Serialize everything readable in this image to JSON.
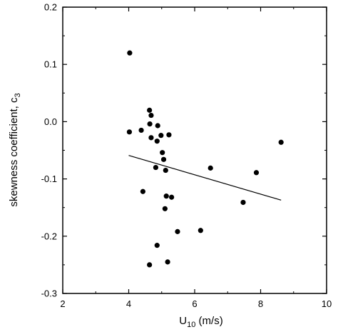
{
  "chart_data": {
    "type": "scatter",
    "title": "",
    "xlabel": "U",
    "xlabel_sub": "10",
    "xlabel_unit": " (m/s)",
    "ylabel": "skewness coefficient, c",
    "ylabel_sub": "3",
    "xlim": [
      2,
      10
    ],
    "ylim": [
      -0.3,
      0.2
    ],
    "x_ticks": [
      2,
      4,
      6,
      8,
      10
    ],
    "x_tick_labels": [
      "2",
      "4",
      "6",
      "8",
      "10"
    ],
    "y_ticks": [
      -0.3,
      -0.2,
      -0.1,
      0.0,
      0.1,
      0.2
    ],
    "y_tick_labels": [
      "-0.3",
      "-0.2",
      "-0.1",
      "0.0",
      "0.1",
      "0.2"
    ],
    "grid": false,
    "series": [
      {
        "marker": "filled-circle",
        "color": "#000000",
        "points": [
          [
            4.03,
            0.12
          ],
          [
            4.02,
            -0.018
          ],
          [
            4.38,
            -0.015
          ],
          [
            4.63,
            0.02
          ],
          [
            4.68,
            0.011
          ],
          [
            4.64,
            -0.004
          ],
          [
            4.88,
            -0.007
          ],
          [
            4.98,
            -0.024
          ],
          [
            4.68,
            -0.028
          ],
          [
            4.86,
            -0.034
          ],
          [
            5.22,
            -0.023
          ],
          [
            5.02,
            -0.054
          ],
          [
            5.06,
            -0.066
          ],
          [
            4.82,
            -0.08
          ],
          [
            5.12,
            -0.085
          ],
          [
            4.43,
            -0.122
          ],
          [
            5.14,
            -0.13
          ],
          [
            5.3,
            -0.132
          ],
          [
            5.1,
            -0.152
          ],
          [
            5.48,
            -0.192
          ],
          [
            4.86,
            -0.216
          ],
          [
            4.63,
            -0.25
          ],
          [
            5.18,
            -0.245
          ],
          [
            6.18,
            -0.19
          ],
          [
            6.48,
            -0.081
          ],
          [
            7.47,
            -0.141
          ],
          [
            7.87,
            -0.089
          ],
          [
            8.62,
            -0.036
          ]
        ]
      }
    ],
    "trend_line": {
      "x": [
        4.0,
        8.62
      ],
      "y": [
        -0.059,
        -0.137
      ]
    }
  }
}
